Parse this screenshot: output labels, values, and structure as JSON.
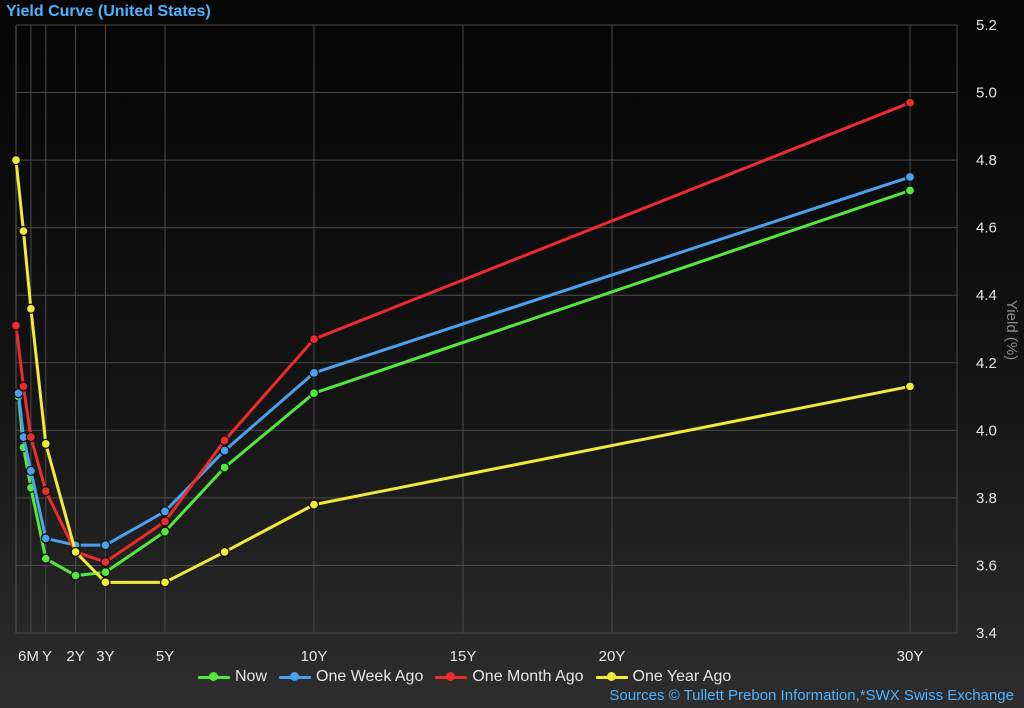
{
  "chart_data": {
    "type": "line",
    "title": "Yield Curve (United States)",
    "ylabel": "Yield (%)",
    "xlabel": "",
    "ylim": [
      3.4,
      5.2
    ],
    "xlim": [
      0,
      32
    ],
    "yticks": [
      3.4,
      3.6,
      3.8,
      4.0,
      4.2,
      4.4,
      4.6,
      4.8,
      5.0,
      5.2
    ],
    "xticks": [
      {
        "value": 0.5,
        "label": "6M"
      },
      {
        "value": 1,
        "label": "Y"
      },
      {
        "value": 2,
        "label": "2Y"
      },
      {
        "value": 3,
        "label": "3Y"
      },
      {
        "value": 5,
        "label": "5Y"
      },
      {
        "value": 10,
        "label": "10Y"
      },
      {
        "value": 15,
        "label": "15Y"
      },
      {
        "value": 20,
        "label": "20Y"
      },
      {
        "value": 30,
        "label": "30Y"
      }
    ],
    "grid": true,
    "legend_position": "bottom",
    "series": [
      {
        "name": "Now",
        "color": "#55e83c",
        "points": [
          [
            0.083,
            4.1
          ],
          [
            0.25,
            3.95
          ],
          [
            0.5,
            3.83
          ],
          [
            1,
            3.62
          ],
          [
            2,
            3.57
          ],
          [
            3,
            3.58
          ],
          [
            5,
            3.7
          ],
          [
            7,
            3.89
          ],
          [
            10,
            4.11
          ],
          [
            30,
            4.71
          ]
        ]
      },
      {
        "name": "One Week Ago",
        "color": "#4aa2ee",
        "points": [
          [
            0.083,
            4.11
          ],
          [
            0.25,
            3.98
          ],
          [
            0.5,
            3.88
          ],
          [
            1,
            3.68
          ],
          [
            2,
            3.66
          ],
          [
            3,
            3.66
          ],
          [
            5,
            3.76
          ],
          [
            7,
            3.94
          ],
          [
            10,
            4.17
          ],
          [
            30,
            4.75
          ]
        ]
      },
      {
        "name": "One Month Ago",
        "color": "#ee2c2c",
        "points": [
          [
            0.0,
            4.31
          ],
          [
            0.25,
            4.13
          ],
          [
            0.5,
            3.98
          ],
          [
            1,
            3.82
          ],
          [
            2,
            3.64
          ],
          [
            3,
            3.61
          ],
          [
            5,
            3.73
          ],
          [
            7,
            3.97
          ],
          [
            10,
            4.27
          ],
          [
            30,
            4.97
          ]
        ]
      },
      {
        "name": "One Year Ago",
        "color": "#f2ea38",
        "points": [
          [
            0.0,
            4.8
          ],
          [
            0.25,
            4.59
          ],
          [
            0.5,
            4.36
          ],
          [
            1,
            3.96
          ],
          [
            2,
            3.64
          ],
          [
            3,
            3.55
          ],
          [
            5,
            3.55
          ],
          [
            7,
            3.64
          ],
          [
            10,
            3.78
          ],
          [
            30,
            4.13
          ]
        ]
      }
    ]
  },
  "source": "Sources  © Tullett Prebon Information,*SWX Swiss Exchange"
}
